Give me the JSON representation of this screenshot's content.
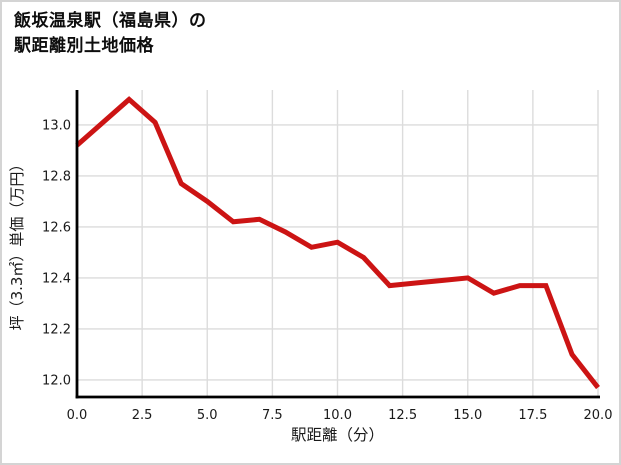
{
  "header": {
    "title_line1": "飯坂温泉駅（福島県）の",
    "title_line2": "駅距離別土地価格"
  },
  "colors": {
    "line": "#cc1414",
    "grid": "#dcdcdc",
    "axis": "#000000",
    "text": "#1a1a1a",
    "background": "#ffffff",
    "frame_border": "#d4d4d4"
  },
  "chart_data": {
    "type": "line",
    "title": "飯坂温泉駅（福島県）の駅距離別土地価格",
    "xlabel": "駅距離（分）",
    "ylabel": "坪（3.3㎡）単価（万円）",
    "x": [
      0,
      1,
      2,
      3,
      4,
      5,
      6,
      7,
      8,
      9,
      10,
      11,
      12,
      13,
      14,
      15,
      16,
      17,
      18,
      19,
      20
    ],
    "values": [
      12.92,
      13.01,
      13.1,
      13.01,
      12.77,
      12.7,
      12.62,
      12.63,
      12.58,
      12.52,
      12.54,
      12.48,
      12.37,
      12.38,
      12.39,
      12.4,
      12.34,
      12.37,
      12.37,
      12.1,
      11.97
    ],
    "xticks": [
      "0.0",
      "2.5",
      "5.0",
      "7.5",
      "10.0",
      "12.5",
      "15.0",
      "17.5",
      "20.0"
    ],
    "yticks": [
      "12.0",
      "12.2",
      "12.4",
      "12.6",
      "12.8",
      "13.0"
    ],
    "xlim": [
      0,
      20
    ],
    "ylim": [
      11.933,
      13.137
    ],
    "grid": true,
    "legend": "none",
    "line_color": "#cc1414"
  }
}
